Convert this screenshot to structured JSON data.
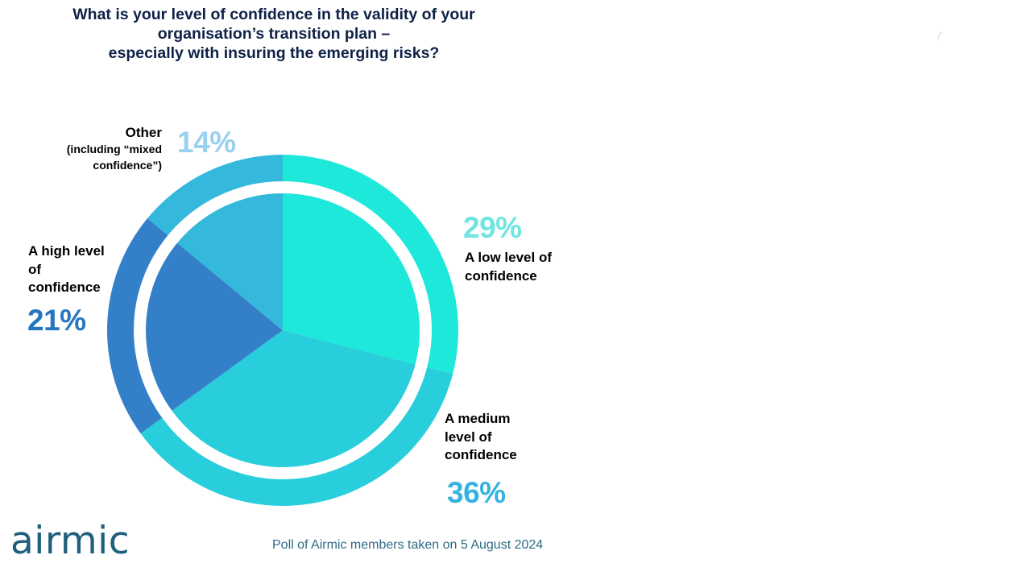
{
  "title_lines": [
    "What is your level of confidence in the validity of your",
    "organisation’s transition plan –",
    "especially with insuring the emerging risks?"
  ],
  "chart_data": {
    "type": "pie",
    "title": "What is your level of confidence in the validity of your organisation’s transition plan – especially with insuring the emerging risks?",
    "categories": [
      "A low level of confidence",
      "A medium level of confidence",
      "A high level of confidence",
      "Other (including “mixed confidence”)"
    ],
    "values": [
      29,
      36,
      21,
      14
    ],
    "unit": "%",
    "colors": [
      "#1ee8d9",
      "#29cedc",
      "#3480c8",
      "#34b9dd"
    ],
    "label_colors": [
      "#6fe6e1",
      "#35b2e0",
      "#2477bf",
      "#9ad0f0"
    ],
    "labels": {
      "low": {
        "name": "A low level of confidence",
        "value": "29%"
      },
      "medium": {
        "name": "A medium level of confidence",
        "value": "36%"
      },
      "high": {
        "name": "A high level of confidence",
        "value": "21%"
      },
      "other": {
        "name": "Other",
        "detail": "(including “mixed confidence”)",
        "value": "14%"
      }
    }
  },
  "footer": {
    "logo_text": "airmic",
    "note": "Poll of Airmic members taken on 5 August 2024"
  }
}
